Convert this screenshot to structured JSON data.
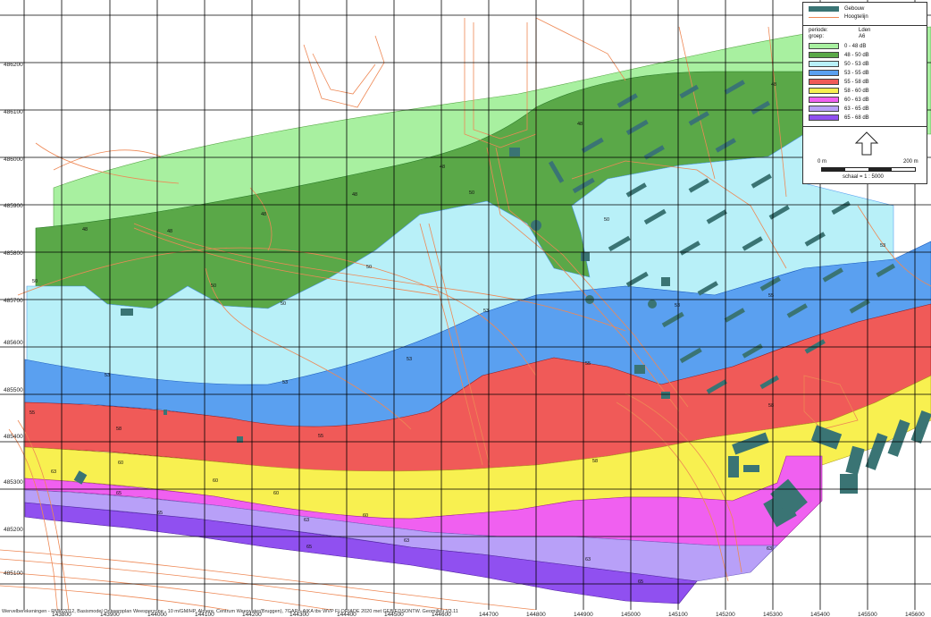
{
  "legend": {
    "symbols": [
      {
        "label": "Gebouw",
        "color": "#3a7474"
      },
      {
        "label": "Hoogtelijn",
        "color": "#ee8855"
      }
    ],
    "periode_label": "periode:",
    "periode_value": "Lden",
    "groep_label": "groep:",
    "groep_value": "A6",
    "classes": [
      {
        "label": "0 - 48 dB",
        "color": "#a8f0a0"
      },
      {
        "label": "48 - 50 dB",
        "color": "#5aa848"
      },
      {
        "label": "50 - 53 dB",
        "color": "#b8f0f8"
      },
      {
        "label": "53 - 55 dB",
        "color": "#5aa0f0"
      },
      {
        "label": "55 - 58 dB",
        "color": "#f05a58"
      },
      {
        "label": "58 - 60 dB",
        "color": "#f8f050"
      },
      {
        "label": "60 - 63 dB",
        "color": "#f060f0"
      },
      {
        "label": "63 - 65 dB",
        "color": "#b8a0f8"
      },
      {
        "label": "65 - 68 dB",
        "color": "#9050f0"
      }
    ],
    "north_arrow_icon": "north-arrow-icon",
    "scale_start": "0 m",
    "scale_end": "200 m",
    "scale_text": "schaal = 1 : 5000"
  },
  "axes": {
    "x_ticks": [
      "143800",
      "143900",
      "144000",
      "144100",
      "144200",
      "144300",
      "144400",
      "144500",
      "144600",
      "144700",
      "144800",
      "144900",
      "145000",
      "145100",
      "145200",
      "145300",
      "145400",
      "145500",
      "145600"
    ],
    "y_ticks": [
      "486200",
      "486100",
      "486000",
      "485900",
      "485800",
      "485700",
      "485600",
      "485500",
      "485400",
      "485300",
      "485200",
      "485100"
    ]
  },
  "contour_labels": [
    "48",
    "48",
    "48",
    "48",
    "48",
    "48",
    "48",
    "50",
    "50",
    "50",
    "50",
    "50",
    "50",
    "53",
    "53",
    "53",
    "53",
    "53",
    "53",
    "55",
    "55",
    "55",
    "55",
    "58",
    "58",
    "58",
    "60",
    "60",
    "60",
    "60",
    "63",
    "63",
    "63",
    "63",
    "63",
    "65",
    "65",
    "65",
    "65"
  ],
  "footer": "Wervelberekeningen - RMW2012, Basismodel Ontwerpplan Weesperzone - 10 m/GM/HP, Almere, Centrum Weerwater(Bruggen), 7GARn-AIKA tbv WVP FLORIADE 2020 met GEBIEDSONTW. Geomilieu V3.11"
}
